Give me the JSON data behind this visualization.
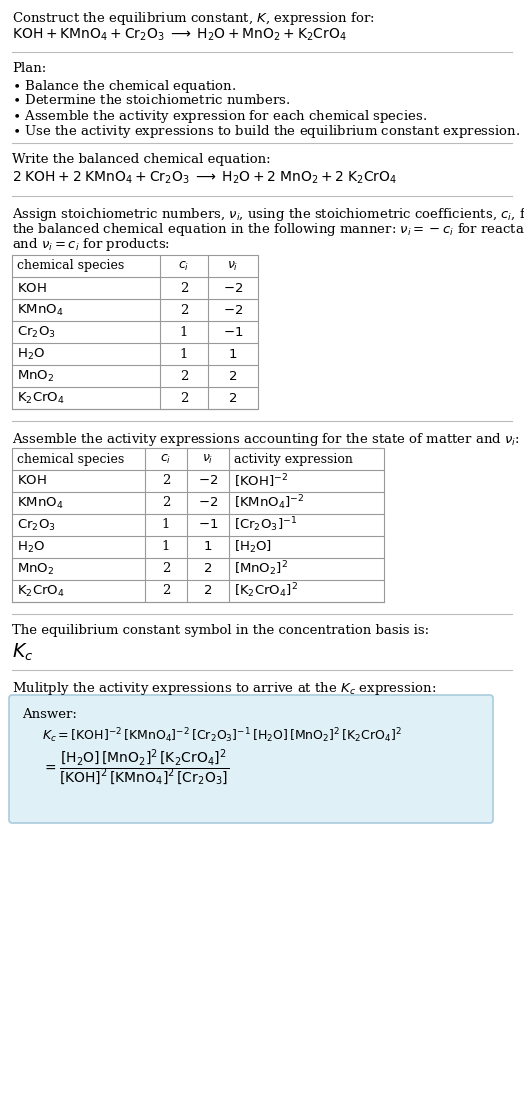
{
  "bg_color": "#ffffff",
  "text_color": "#000000",
  "title_line1": "Construct the equilibrium constant, $K$, expression for:",
  "title_line2": "$\\mathrm{KOH + KMnO_4 + Cr_2O_3 \\;\\longrightarrow\\; H_2O + MnO_2 + K_2CrO_4}$",
  "plan_header": "Plan:",
  "balanced_header": "Write the balanced chemical equation:",
  "balanced_eq": "$\\mathrm{2\\;KOH + 2\\;KMnO_4 + Cr_2O_3 \\;\\longrightarrow\\; H_2O + 2\\;MnO_2 + 2\\;K_2CrO_4}$",
  "table1_cols": [
    "chemical species",
    "$c_i$",
    "$\\nu_i$"
  ],
  "table1_rows": [
    [
      "$\\mathrm{KOH}$",
      "2",
      "$-2$"
    ],
    [
      "$\\mathrm{KMnO_4}$",
      "2",
      "$-2$"
    ],
    [
      "$\\mathrm{Cr_2O_3}$",
      "1",
      "$-1$"
    ],
    [
      "$\\mathrm{H_2O}$",
      "1",
      "$1$"
    ],
    [
      "$\\mathrm{MnO_2}$",
      "2",
      "$2$"
    ],
    [
      "$\\mathrm{K_2CrO_4}$",
      "2",
      "$2$"
    ]
  ],
  "activity_header": "Assemble the activity expressions accounting for the state of matter and $\\nu_i$:",
  "table2_cols": [
    "chemical species",
    "$c_i$",
    "$\\nu_i$",
    "activity expression"
  ],
  "table2_rows": [
    [
      "$\\mathrm{KOH}$",
      "2",
      "$-2$",
      "$[\\mathrm{KOH}]^{-2}$"
    ],
    [
      "$\\mathrm{KMnO_4}$",
      "2",
      "$-2$",
      "$[\\mathrm{KMnO_4}]^{-2}$"
    ],
    [
      "$\\mathrm{Cr_2O_3}$",
      "1",
      "$-1$",
      "$[\\mathrm{Cr_2O_3}]^{-1}$"
    ],
    [
      "$\\mathrm{H_2O}$",
      "1",
      "$1$",
      "$[\\mathrm{H_2O}]$"
    ],
    [
      "$\\mathrm{MnO_2}$",
      "2",
      "$2$",
      "$[\\mathrm{MnO_2}]^{2}$"
    ],
    [
      "$\\mathrm{K_2CrO_4}$",
      "2",
      "$2$",
      "$[\\mathrm{K_2CrO_4}]^{2}$"
    ]
  ],
  "kc_header": "The equilibrium constant symbol in the concentration basis is:",
  "kc_symbol": "$K_c$",
  "multiply_header": "Mulitply the activity expressions to arrive at the $K_c$ expression:",
  "answer_label": "Answer:",
  "answer_line1": "$K_c = [\\mathrm{KOH}]^{-2}\\,[\\mathrm{KMnO_4}]^{-2}\\,[\\mathrm{Cr_2O_3}]^{-1}\\,[\\mathrm{H_2O}]\\,[\\mathrm{MnO_2}]^{2}\\,[\\mathrm{K_2CrO_4}]^{2}$",
  "answer_eq_lhs": "$= \\dfrac{[\\mathrm{H_2O}]\\,[\\mathrm{MnO_2}]^{2}\\,[\\mathrm{K_2CrO_4}]^{2}}{[\\mathrm{KOH}]^{2}\\,[\\mathrm{KMnO_4}]^{2}\\,[\\mathrm{Cr_2O_3}]}$",
  "answer_box_color": "#dff0f7",
  "answer_box_border": "#aaccdd",
  "font_size": 9.5
}
